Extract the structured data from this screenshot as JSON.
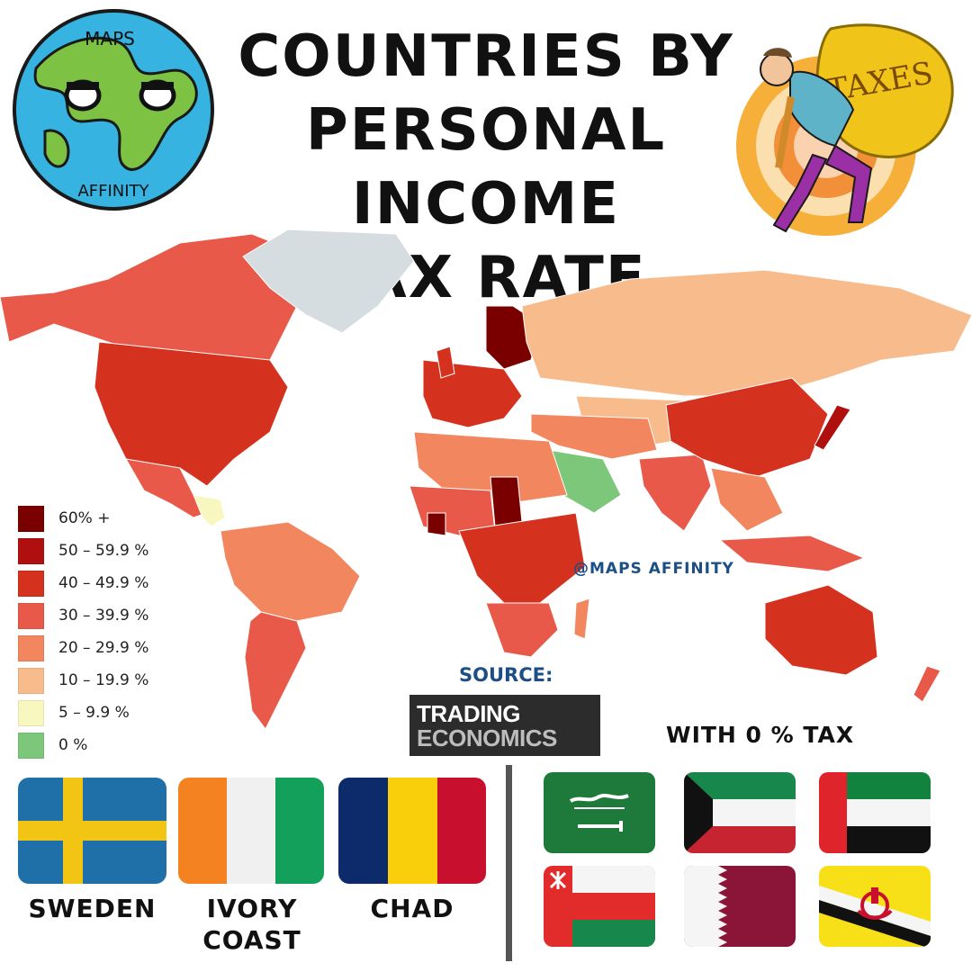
{
  "title_lines": [
    "COUNTRIES BY",
    "PERSONAL INCOME",
    "TAX RATE"
  ],
  "logo": {
    "top_text": "MAPS",
    "bottom_text": "AFFINITY"
  },
  "taxes_bag_text": "TAXES",
  "legend": [
    {
      "label": "60% +",
      "color": "#7a0000"
    },
    {
      "label": "50 – 59.9 %",
      "color": "#b00f0f"
    },
    {
      "label": "40 – 49.9 %",
      "color": "#d5311f"
    },
    {
      "label": "30 – 39.9 %",
      "color": "#e9594a"
    },
    {
      "label": "20 – 29.9 %",
      "color": "#f2865f"
    },
    {
      "label": "10 – 19.9 %",
      "color": "#f8bb8b"
    },
    {
      "label": "5 – 9.9 %",
      "color": "#f8f7c0"
    },
    {
      "label": "0 %",
      "color": "#7cc779"
    }
  ],
  "no_data_color": "#d6dde0",
  "handle": "@MAPS AFFINITY",
  "source": {
    "label": "SOURCE:",
    "logo_line1": "TRADING",
    "logo_line2": "ECONOMICS"
  },
  "zero_tax_heading": "WITH 0 % TAX",
  "highest_tax_countries": [
    {
      "name": "SWEDEN",
      "flag": "sweden-flag"
    },
    {
      "name": "IVORY COAST",
      "flag": "ivory-coast-flag"
    },
    {
      "name": "CHAD",
      "flag": "chad-flag"
    }
  ],
  "zero_tax_countries": [
    {
      "flag": "saudi-arabia-flag"
    },
    {
      "flag": "kuwait-flag"
    },
    {
      "flag": "uae-flag"
    },
    {
      "flag": "oman-flag"
    },
    {
      "flag": "qatar-flag"
    },
    {
      "flag": "brunei-flag"
    }
  ]
}
